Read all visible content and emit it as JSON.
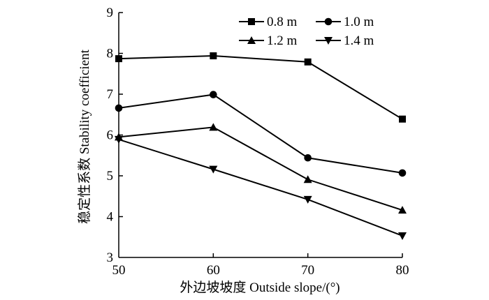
{
  "chart_data": {
    "type": "line",
    "xlabel": "外边坡坡度 Outside slope/(°)",
    "ylabel": "稳定性系数 Stability coefficient",
    "x": [
      50,
      60,
      70,
      80
    ],
    "xlim": [
      50,
      80
    ],
    "ylim": [
      3,
      9
    ],
    "xticks": [
      "50",
      "60",
      "70",
      "80"
    ],
    "yticks": [
      "3",
      "4",
      "5",
      "6",
      "7",
      "8",
      "9"
    ],
    "grid": false,
    "legend_position": "top-right",
    "series": [
      {
        "name": "0.8 m",
        "marker": "square",
        "values": [
          7.87,
          7.94,
          7.79,
          6.39
        ]
      },
      {
        "name": "1.0 m",
        "marker": "circle",
        "values": [
          6.66,
          6.99,
          5.44,
          5.07
        ]
      },
      {
        "name": "1.2 m",
        "marker": "triangle-up",
        "values": [
          5.95,
          6.19,
          4.91,
          4.16
        ]
      },
      {
        "name": "1.4 m",
        "marker": "triangle-down",
        "values": [
          5.89,
          5.16,
          4.42,
          3.53
        ]
      }
    ]
  }
}
